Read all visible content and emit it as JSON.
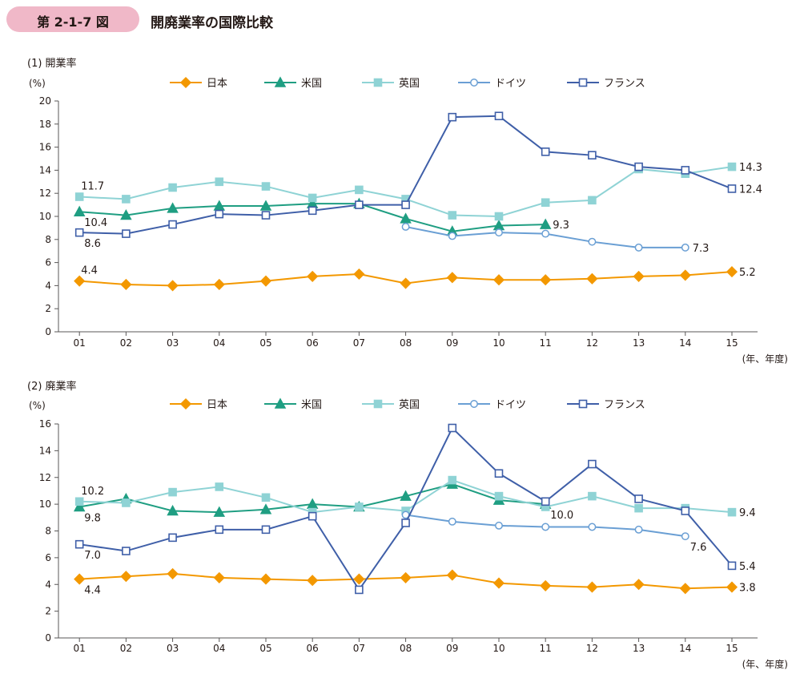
{
  "figure": {
    "number": "第 2-1-7 図",
    "title": "開廃業率の国際比較"
  },
  "series_style": {
    "日本": {
      "color": "#f39800",
      "marker": "diamond",
      "fill": true
    },
    "米国": {
      "color": "#1f9e82",
      "marker": "triangle",
      "fill": true
    },
    "英国": {
      "color": "#8fd3d5",
      "marker": "square",
      "fill": true
    },
    "ドイツ": {
      "color": "#6a9fd4",
      "marker": "circle",
      "fill": false
    },
    "フランス": {
      "color": "#3f5fa8",
      "marker": "square",
      "fill": false
    }
  },
  "chart_data": [
    {
      "type": "line",
      "title": "(1) 開業率",
      "unit": "(%)",
      "x_unit": "(年、年度)",
      "categories": [
        "01",
        "02",
        "03",
        "04",
        "05",
        "06",
        "07",
        "08",
        "09",
        "10",
        "11",
        "12",
        "13",
        "14",
        "15"
      ],
      "ylim": [
        0,
        20
      ],
      "yticks": [
        0,
        2,
        4,
        6,
        8,
        10,
        12,
        14,
        16,
        18,
        20
      ],
      "legend": "top",
      "series": [
        {
          "name": "日本",
          "values": [
            4.4,
            4.1,
            4.0,
            4.1,
            4.4,
            4.8,
            5.0,
            4.2,
            4.7,
            4.5,
            4.5,
            4.6,
            4.8,
            4.9,
            5.2
          ]
        },
        {
          "name": "米国",
          "values": [
            10.4,
            10.1,
            10.7,
            10.9,
            10.9,
            11.1,
            11.1,
            9.8,
            8.7,
            9.2,
            9.3,
            null,
            null,
            null,
            null
          ]
        },
        {
          "name": "英国",
          "values": [
            11.7,
            11.5,
            12.5,
            13.0,
            12.6,
            11.6,
            12.3,
            11.5,
            10.1,
            10.0,
            11.2,
            11.4,
            14.1,
            13.7,
            14.3
          ]
        },
        {
          "name": "ドイツ",
          "values": [
            null,
            null,
            null,
            null,
            null,
            null,
            null,
            9.1,
            8.3,
            8.6,
            8.5,
            7.8,
            7.3,
            7.3,
            null
          ]
        },
        {
          "name": "フランス",
          "values": [
            8.6,
            8.5,
            9.3,
            10.2,
            10.1,
            10.5,
            11.0,
            11.0,
            18.6,
            18.7,
            15.6,
            15.3,
            14.3,
            14.0,
            12.4
          ]
        }
      ],
      "annotations": [
        {
          "text": "11.7",
          "series": "英国",
          "index": 0,
          "pos": "above"
        },
        {
          "text": "10.4",
          "series": "米国",
          "index": 0,
          "pos": "below"
        },
        {
          "text": "8.6",
          "series": "フランス",
          "index": 0,
          "pos": "below"
        },
        {
          "text": "4.4",
          "series": "日本",
          "index": 0,
          "pos": "above"
        },
        {
          "text": "9.3",
          "series": "米国",
          "index": 10,
          "pos": "right"
        },
        {
          "text": "7.3",
          "series": "ドイツ",
          "index": 13,
          "pos": "right"
        },
        {
          "text": "14.3",
          "series": "英国",
          "index": 14,
          "pos": "right"
        },
        {
          "text": "12.4",
          "series": "フランス",
          "index": 14,
          "pos": "right"
        },
        {
          "text": "5.2",
          "series": "日本",
          "index": 14,
          "pos": "right"
        }
      ]
    },
    {
      "type": "line",
      "title": "(2) 廃業率",
      "unit": "(%)",
      "x_unit": "(年、年度)",
      "categories": [
        "01",
        "02",
        "03",
        "04",
        "05",
        "06",
        "07",
        "08",
        "09",
        "10",
        "11",
        "12",
        "13",
        "14",
        "15"
      ],
      "ylim": [
        0,
        16
      ],
      "yticks": [
        0,
        2,
        4,
        6,
        8,
        10,
        12,
        14,
        16
      ],
      "legend": "top",
      "series": [
        {
          "name": "日本",
          "values": [
            4.4,
            4.6,
            4.8,
            4.5,
            4.4,
            4.3,
            4.4,
            4.5,
            4.7,
            4.1,
            3.9,
            3.8,
            4.0,
            3.7,
            3.8
          ]
        },
        {
          "name": "米国",
          "values": [
            9.8,
            10.4,
            9.5,
            9.4,
            9.6,
            10.0,
            9.8,
            10.6,
            11.5,
            10.3,
            10.0,
            null,
            null,
            null,
            null
          ]
        },
        {
          "name": "英国",
          "values": [
            10.2,
            10.1,
            10.9,
            11.3,
            10.5,
            9.4,
            9.8,
            9.5,
            11.8,
            10.6,
            9.8,
            10.6,
            9.7,
            9.7,
            9.4
          ]
        },
        {
          "name": "ドイツ",
          "values": [
            null,
            null,
            null,
            null,
            null,
            null,
            null,
            9.2,
            8.7,
            8.4,
            8.3,
            8.3,
            8.1,
            7.6,
            null
          ]
        },
        {
          "name": "フランス",
          "values": [
            7.0,
            6.5,
            7.5,
            8.1,
            8.1,
            9.1,
            3.6,
            8.6,
            15.7,
            12.3,
            10.2,
            13.0,
            10.4,
            9.5,
            5.4
          ]
        }
      ],
      "annotations": [
        {
          "text": "10.2",
          "series": "英国",
          "index": 0,
          "pos": "above"
        },
        {
          "text": "9.8",
          "series": "米国",
          "index": 0,
          "pos": "below"
        },
        {
          "text": "7.0",
          "series": "フランス",
          "index": 0,
          "pos": "below"
        },
        {
          "text": "4.4",
          "series": "日本",
          "index": 0,
          "pos": "below"
        },
        {
          "text": "10.0",
          "series": "米国",
          "index": 10,
          "pos": "below"
        },
        {
          "text": "7.6",
          "series": "ドイツ",
          "index": 13,
          "pos": "below"
        },
        {
          "text": "9.4",
          "series": "英国",
          "index": 14,
          "pos": "right"
        },
        {
          "text": "5.4",
          "series": "フランス",
          "index": 14,
          "pos": "right"
        },
        {
          "text": "3.8",
          "series": "日本",
          "index": 14,
          "pos": "right"
        }
      ]
    }
  ]
}
